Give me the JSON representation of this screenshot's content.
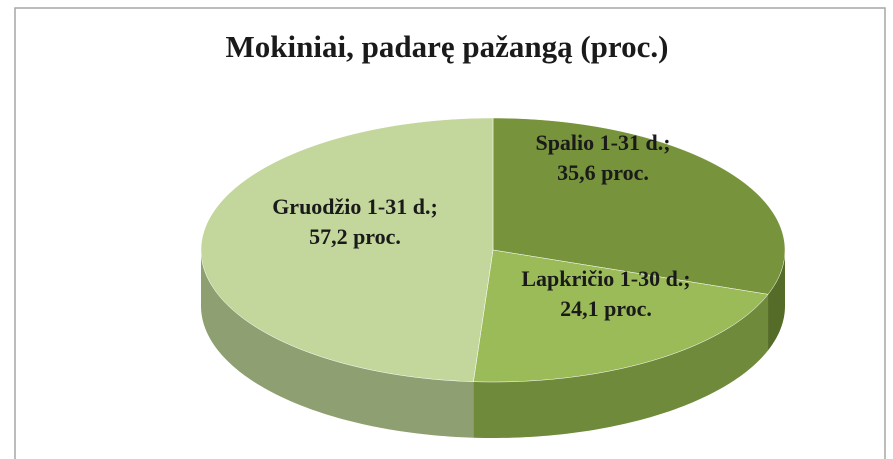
{
  "chart_data": {
    "type": "pie3d",
    "title": "Mokiniai, padarę pažangą (proc.)",
    "categories": [
      "Spalio 1-31 d.;",
      "Lapkričio 1-30 d.;",
      "Gruodžio 1-31 d.;"
    ],
    "values": [
      35.6,
      24.1,
      57.2
    ],
    "value_labels": [
      "35,6 proc.",
      "24,1 proc.",
      "57,2 proc."
    ],
    "colors": [
      "#77933c",
      "#9bbb59",
      "#c3d69b"
    ],
    "side_colors": [
      "#556b28",
      "#6f8a3a",
      "#8e9f72"
    ]
  }
}
